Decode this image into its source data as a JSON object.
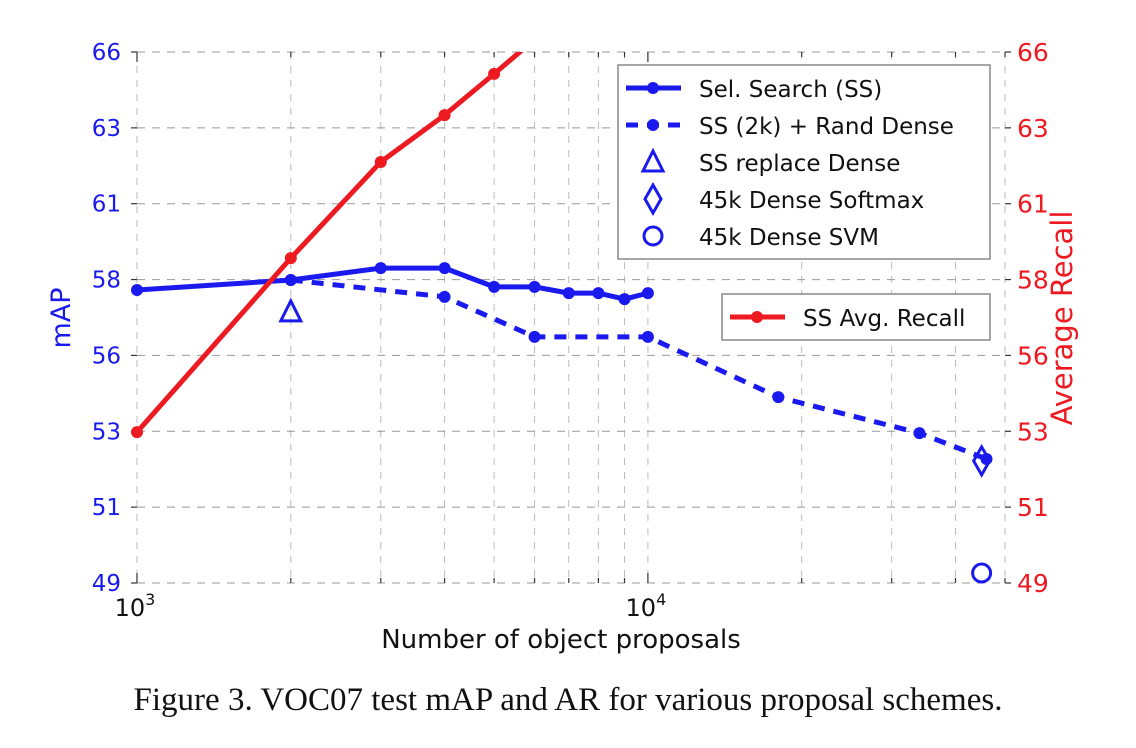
{
  "chart_data": {
    "type": "line",
    "caption": "Figure 3. VOC07 test mAP and AR for various proposal schemes.",
    "xlabel": "Number of object proposals",
    "ylabel_left": "mAP",
    "ylabel_right": "Average Recall",
    "xscale": "log",
    "xlim": [
      1000,
      50000
    ],
    "ylim_left": [
      49,
      66
    ],
    "ylim_right": [
      49,
      66
    ],
    "x_tick_labels": [
      {
        "value": 1000,
        "base": "10",
        "exp": "3"
      },
      {
        "value": 10000,
        "base": "10",
        "exp": "4"
      }
    ],
    "y_tick_labels": [
      "49",
      "51",
      "53",
      "56",
      "58",
      "61",
      "63",
      "66"
    ],
    "grid": true,
    "colors": {
      "blue": "#1a1aee",
      "red": "#ee1a22"
    },
    "series": [
      {
        "name": "Sel. Search (SS)",
        "axis": "left",
        "style": "solid",
        "marker": "dot",
        "color": "#1a1aee",
        "x": [
          1000,
          2000,
          3000,
          4000,
          5000,
          6000,
          7000,
          8000,
          9000,
          10000
        ],
        "y": [
          58.38,
          58.7,
          59.08,
          59.08,
          58.48,
          58.48,
          58.28,
          58.28,
          58.09,
          58.28
        ]
      },
      {
        "name": "SS (2k) + Rand Dense",
        "axis": "left",
        "style": "dashed",
        "marker": "dot",
        "color": "#1a1aee",
        "x": [
          2000,
          4000,
          6000,
          10000,
          18000,
          34000,
          46000
        ],
        "y": [
          58.7,
          58.16,
          56.88,
          56.88,
          54.95,
          53.8,
          52.97
        ]
      },
      {
        "name": "SS replace Dense",
        "axis": "left",
        "style": "none",
        "marker": "triangle",
        "color": "#1a1aee",
        "x": [
          2000
        ],
        "y": [
          57.68
        ]
      },
      {
        "name": "45k Dense Softmax",
        "axis": "left",
        "style": "none",
        "marker": "diamond",
        "color": "#1a1aee",
        "x": [
          45000
        ],
        "y": [
          52.91
        ]
      },
      {
        "name": "45k Dense SVM",
        "axis": "left",
        "style": "none",
        "marker": "circle",
        "color": "#1a1aee",
        "x": [
          45000
        ],
        "y": [
          49.32
        ]
      },
      {
        "name": "SS Avg. Recall",
        "axis": "right",
        "style": "solid",
        "marker": "dot",
        "color": "#ee1a22",
        "x": [
          1000,
          2000,
          3000,
          4000,
          5000,
          6000
        ],
        "y": [
          53.83,
          59.4,
          62.48,
          63.98,
          65.3,
          66.4
        ]
      }
    ],
    "legends": [
      {
        "placement": "top-right",
        "entries": [
          "Sel. Search (SS)",
          "SS (2k) + Rand Dense",
          "SS replace Dense",
          "45k Dense Softmax",
          "45k Dense SVM"
        ]
      },
      {
        "placement": "right",
        "entries": [
          "SS Avg. Recall"
        ]
      }
    ]
  }
}
